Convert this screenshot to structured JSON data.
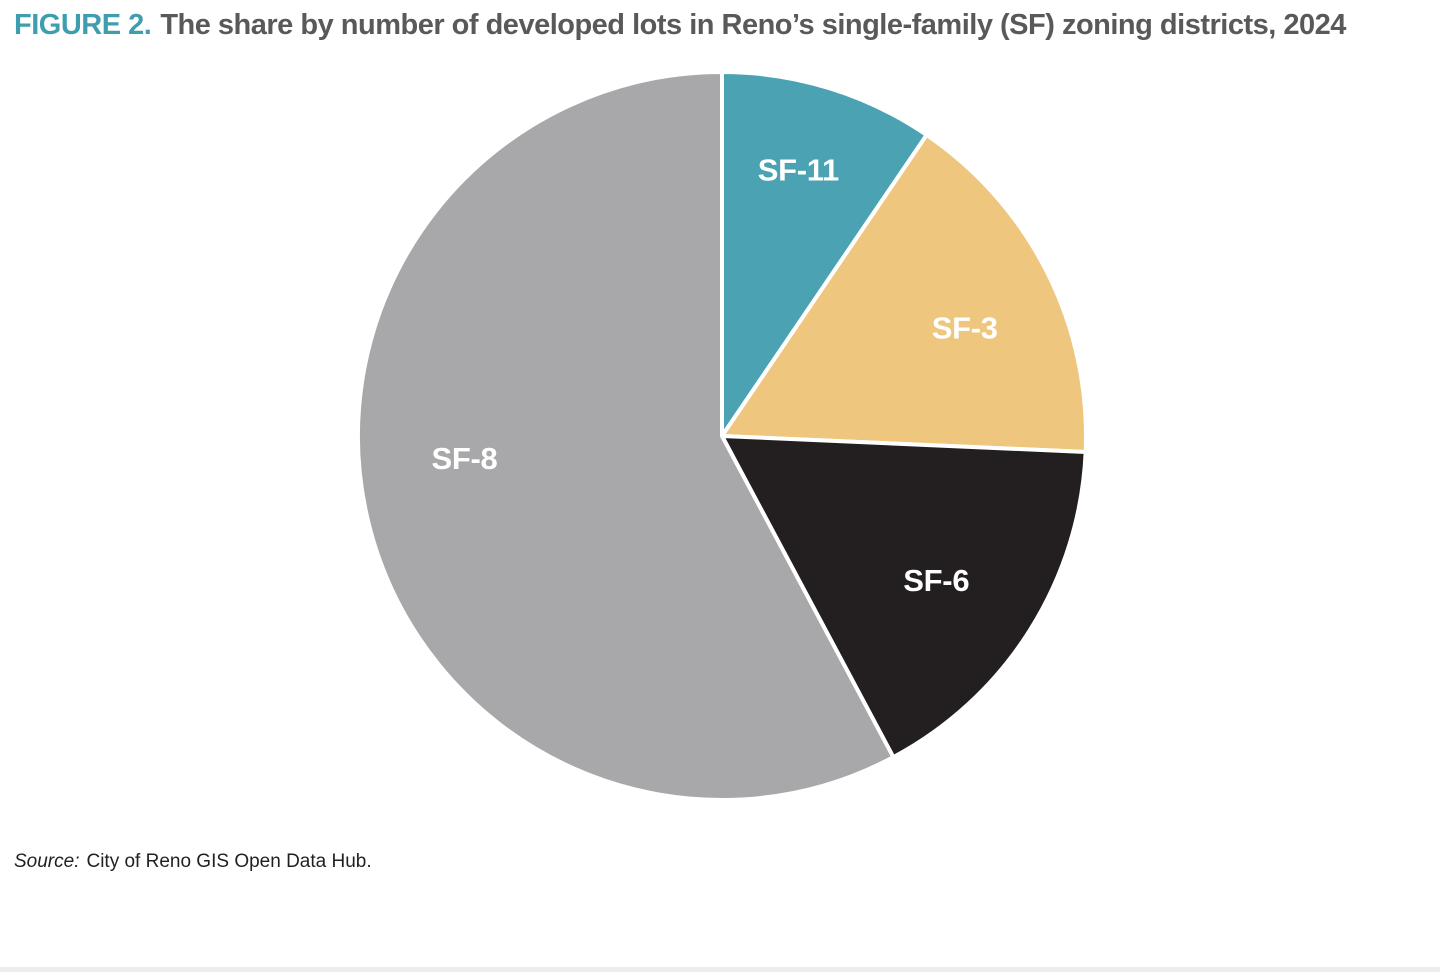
{
  "figure": {
    "label": "FIGURE 2.",
    "title": "The share by number of developed lots in Reno’s single-family (SF) zoning districts, 2024",
    "label_color": "#3E9EB0",
    "title_color": "#58595B"
  },
  "source": {
    "prefix": "Source:",
    "text": "City of Reno GIS Open Data Hub."
  },
  "chart_data": {
    "type": "pie",
    "title": "The share by number of developed lots in Reno’s single-family (SF) zoning districts, 2024",
    "start_angle_deg": 0,
    "direction": "clockwise",
    "legend": "none",
    "labels_inside": true,
    "label_color": "#FFFFFF",
    "slice_divider_color": "#FFFFFF",
    "slices": [
      {
        "label": "SF-11",
        "share_pct": 9.5,
        "color": "#4AA2B2",
        "label_angle_deg": 16,
        "label_r_frac": 0.76
      },
      {
        "label": "SF-3",
        "share_pct": 16.2,
        "color": "#EFC67E",
        "label_angle_deg": 66,
        "label_r_frac": 0.73
      },
      {
        "label": "SF-6",
        "share_pct": 16.5,
        "color": "#231F20",
        "label_angle_deg": 124,
        "label_r_frac": 0.71
      },
      {
        "label": "SF-8",
        "share_pct": 57.8,
        "color": "#A8A8AA",
        "label_angle_deg": 265,
        "label_r_frac": 0.71
      }
    ]
  }
}
